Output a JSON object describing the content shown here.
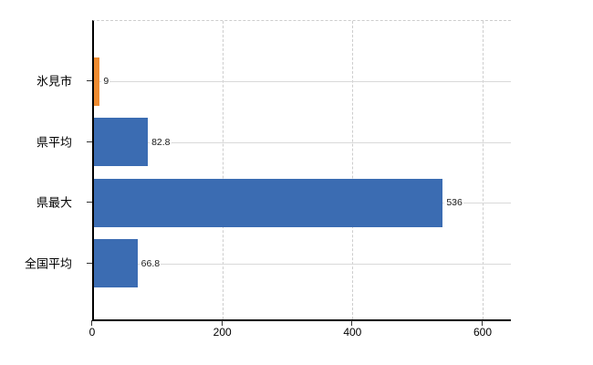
{
  "chart_data": {
    "type": "bar",
    "orientation": "horizontal",
    "title": "",
    "xlabel": "",
    "ylabel": "",
    "categories": [
      "氷見市",
      "県平均",
      "県最大",
      "全国平均"
    ],
    "values": [
      9,
      82.8,
      536,
      66.8
    ],
    "value_labels": [
      "9",
      "82.8",
      "536",
      "66.8"
    ],
    "bar_colors": [
      "#ee8b30",
      "#3b6cb2",
      "#3b6cb2",
      "#3b6cb2"
    ],
    "x_ticks": [
      0,
      200,
      400,
      600
    ],
    "x_tick_labels": [
      "0",
      "200",
      "400",
      "600"
    ],
    "xlim": [
      0,
      643
    ],
    "grid": {
      "vertical": "dashed at x ticks",
      "horizontal": "solid at category centers"
    },
    "legend": "none",
    "colors": {
      "highlight_bar": "#ee8b30",
      "default_bar": "#3b6cb2",
      "horizontal_gridline": "#d9d9d9",
      "vertical_gridline": "#cdcdcd",
      "axis": "#000000",
      "text": "#000000",
      "background": "#ffffff"
    }
  }
}
